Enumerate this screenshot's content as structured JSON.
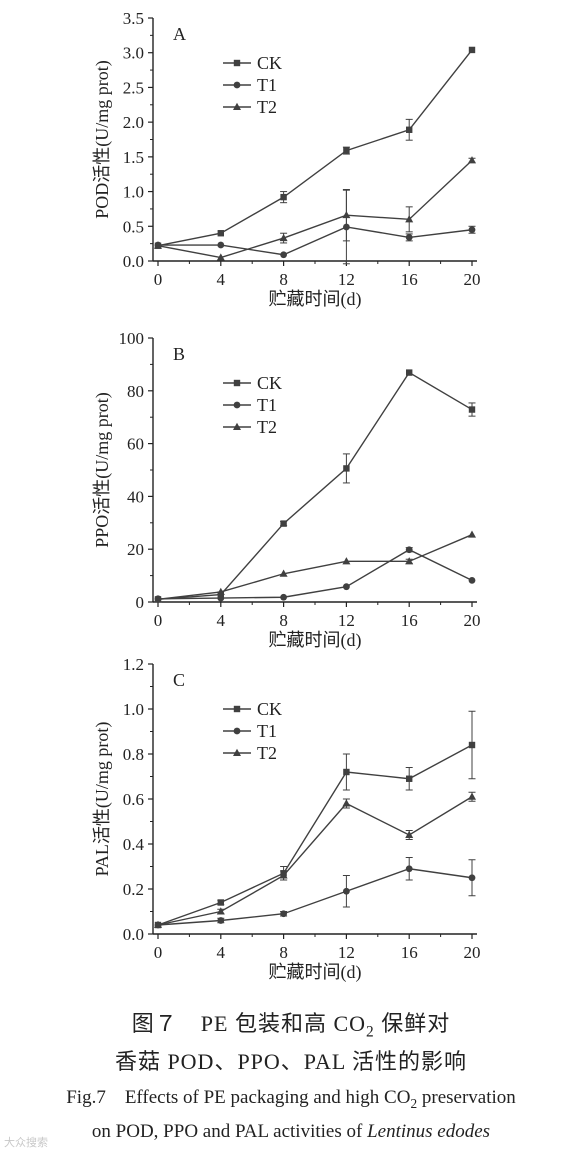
{
  "chart_data": [
    {
      "type": "line",
      "panel_label": "A",
      "x": [
        0,
        4,
        8,
        12,
        16,
        20
      ],
      "xlim": [
        0,
        20
      ],
      "ylim": [
        0,
        3.5
      ],
      "xticks": [
        "0",
        "4",
        "8",
        "12",
        "16",
        "20"
      ],
      "yticks": [
        "0.0",
        "0.5",
        "1.0",
        "1.5",
        "2.0",
        "2.5",
        "3.0",
        "3.5"
      ],
      "xlabel": "贮藏时间(d)",
      "ylabel": "POD活性(U/mg prot)",
      "legend_position": "top-left",
      "series": [
        {
          "name": "CK",
          "marker": "square",
          "values": [
            0.22,
            0.4,
            0.92,
            1.59,
            1.89,
            3.04
          ],
          "errors": [
            0.02,
            0.02,
            0.08,
            0.05,
            0.15,
            0.02
          ]
        },
        {
          "name": "T1",
          "marker": "circle",
          "values": [
            0.23,
            0.23,
            0.09,
            0.49,
            0.34,
            0.45
          ],
          "errors": [
            0.02,
            0.02,
            0.02,
            0.53,
            0.05,
            0.05
          ]
        },
        {
          "name": "T2",
          "marker": "triangle",
          "values": [
            0.22,
            0.05,
            0.33,
            0.66,
            0.6,
            1.45
          ],
          "errors": [
            0.02,
            0.02,
            0.07,
            0.37,
            0.18,
            0.03
          ]
        }
      ]
    },
    {
      "type": "line",
      "panel_label": "B",
      "x": [
        0,
        4,
        8,
        12,
        16,
        20
      ],
      "xlim": [
        0,
        20
      ],
      "ylim": [
        0,
        100
      ],
      "xticks": [
        "0",
        "4",
        "8",
        "12",
        "16",
        "20"
      ],
      "yticks": [
        "0",
        "20",
        "40",
        "60",
        "80",
        "100"
      ],
      "xlabel": "贮藏时间(d)",
      "ylabel": "PPO活性(U/mg prot)",
      "legend_position": "top-left",
      "series": [
        {
          "name": "CK",
          "marker": "square",
          "values": [
            1.0,
            2.8,
            29.7,
            50.6,
            86.9,
            72.9
          ],
          "errors": [
            0.5,
            0.5,
            0.8,
            5.5,
            0.5,
            2.5
          ]
        },
        {
          "name": "T1",
          "marker": "circle",
          "values": [
            1.2,
            1.5,
            1.8,
            5.8,
            19.8,
            8.2
          ],
          "errors": [
            0.3,
            0.3,
            0.3,
            0.6,
            0.8,
            0.6
          ]
        },
        {
          "name": "T2",
          "marker": "triangle",
          "values": [
            1.0,
            3.8,
            10.7,
            15.4,
            15.4,
            25.5
          ],
          "errors": [
            0.3,
            0.3,
            0.6,
            0.6,
            0.8,
            0.6
          ]
        }
      ]
    },
    {
      "type": "line",
      "panel_label": "C",
      "x": [
        0,
        4,
        8,
        12,
        16,
        20
      ],
      "xlim": [
        0,
        20
      ],
      "ylim": [
        0,
        1.2
      ],
      "xticks": [
        "0",
        "4",
        "8",
        "12",
        "16",
        "20"
      ],
      "yticks": [
        "0.0",
        "0.2",
        "0.4",
        "0.6",
        "0.8",
        "1.0",
        "1.2"
      ],
      "xlabel": "贮藏时间(d)",
      "ylabel": "PAL活性(U/mg prot)",
      "legend_position": "top-left",
      "series": [
        {
          "name": "CK",
          "marker": "square",
          "values": [
            0.04,
            0.14,
            0.27,
            0.72,
            0.69,
            0.84
          ],
          "errors": [
            0.005,
            0.01,
            0.03,
            0.08,
            0.05,
            0.15
          ]
        },
        {
          "name": "T1",
          "marker": "circle",
          "values": [
            0.04,
            0.06,
            0.09,
            0.19,
            0.29,
            0.25
          ],
          "errors": [
            0.005,
            0.01,
            0.01,
            0.07,
            0.05,
            0.08
          ]
        },
        {
          "name": "T2",
          "marker": "triangle",
          "values": [
            0.04,
            0.1,
            0.26,
            0.58,
            0.44,
            0.61
          ],
          "errors": [
            0.005,
            0.01,
            0.02,
            0.02,
            0.02,
            0.02
          ]
        }
      ]
    }
  ],
  "caption": {
    "cn_line1_a": "图７　PE 包装和高 CO",
    "cn_line1_sub": "2",
    "cn_line1_b": " 保鲜对",
    "cn_line2": "香菇 POD、PPO、PAL 活性的影响",
    "en_line1_a": "Fig.7　Effects of PE packaging and high CO",
    "en_line1_sub": "2",
    "en_line1_b": " preservation",
    "en_line2_a": "on POD, PPO and PAL activities of ",
    "en_line2_italic": "Lentinus edodes"
  },
  "watermark": "大众搜索",
  "colors": {
    "line": "#404040",
    "text": "#222222",
    "axis": "#222222"
  }
}
